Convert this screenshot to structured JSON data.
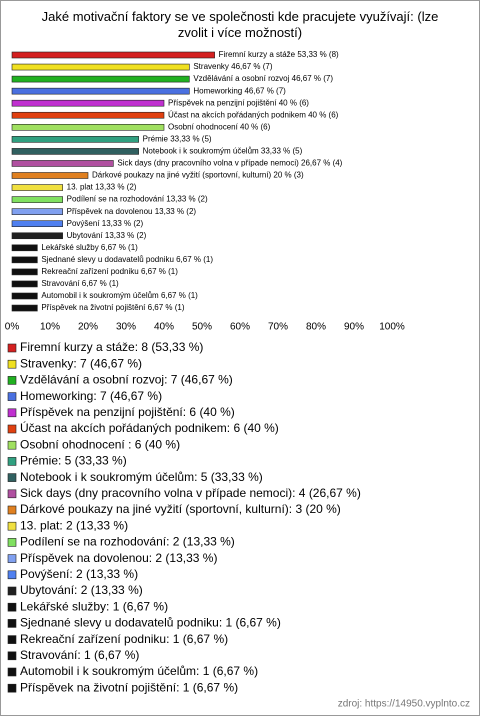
{
  "chart_data": {
    "type": "bar",
    "orientation": "horizontal",
    "title": "Jaké motivační faktory se ve společnosti kde pracujete využívají: (lze zvolit i více možností)",
    "categories": [
      "Firemní kurzy a stáže",
      "Stravenky",
      "Vzdělávání a osobní rozvoj",
      "Homeworking",
      "Příspěvek na penzijní pojištění",
      "Účast na akcích pořádaných podnikem",
      "Osobní ohodnocení",
      "Prémie",
      "Notebook i k soukromým účelům",
      "Sick days (dny pracovního volna v případe nemoci)",
      "Dárkové poukazy na jiné vyžití (sportovní, kulturní)",
      "13. plat",
      "Podílení se na rozhodování",
      "Příspěvek na dovolenou",
      "Povýšení",
      "Ubytování",
      "Lekářské služby",
      "Sjednané slevy u dodavatelů podniku",
      "Rekreační zařízení podniku",
      "Stravování",
      "Automobil i k soukromým účelům",
      "Příspěvek na životní pojištění"
    ],
    "values": [
      53.33,
      46.67,
      46.67,
      46.67,
      40,
      40,
      40,
      33.33,
      33.33,
      26.67,
      20,
      13.33,
      13.33,
      13.33,
      13.33,
      13.33,
      6.67,
      6.67,
      6.67,
      6.67,
      6.67,
      6.67
    ],
    "value_labels": [
      "Firemní kurzy a stáže 53,33 % (8)",
      "Stravenky 46,67 % (7)",
      "Vzdělávání a osobní rozvoj 46,67 % (7)",
      "Homeworking 46,67 % (7)",
      "Příspěvek na penzijní pojištění 40 % (6)",
      "Účast na akcích pořádaných podnikem 40 % (6)",
      "Osobní ohodnocení  40 % (6)",
      "Prémie 33,33 % (5)",
      "Notebook i k soukromým účelům 33,33 % (5)",
      "Sick days (dny pracovního volna v případe nemoci) 26,67 % (4)",
      "Dárkové poukazy na jiné vyžití (sportovní, kulturní) 20 % (3)",
      "13. plat 13,33 % (2)",
      "Podílení se na rozhodování 13,33 % (2)",
      "Příspěvek na dovolenou 13,33 % (2)",
      "Povýšení 13,33 % (2)",
      "Ubytování 13,33 % (2)",
      "Lekářské služby 6,67 % (1)",
      "Sjednané slevy u dodavatelů podniku 6,67 % (1)",
      "Rekreační zařízení podniku 6,67 % (1)",
      "Stravování 6,67 % (1)",
      "Automobil i k soukromým účelům 6,67 % (1)",
      "Příspěvek na životní pojištění 6,67 % (1)"
    ],
    "legend_labels": [
      "Firemní kurzy a stáže: 8 (53,33 %)",
      "Stravenky: 7 (46,67 %)",
      "Vzdělávání a osobní rozvoj: 7 (46,67 %)",
      "Homeworking: 7 (46,67 %)",
      "Příspěvek na penzijní pojištění: 6 (40 %)",
      "Účast na akcích pořádaných podnikem: 6 (40 %)",
      "Osobní ohodnocení : 6 (40 %)",
      "Prémie: 5 (33,33 %)",
      "Notebook i k soukromým účelům: 5 (33,33 %)",
      "Sick days (dny pracovního volna v případe nemoci): 4 (26,67 %)",
      "Dárkové poukazy na jiné vyžití (sportovní, kulturní): 3 (20 %)",
      "13. plat: 2 (13,33 %)",
      "Podílení se na rozhodování: 2 (13,33 %)",
      "Příspěvek na dovolenou: 2 (13,33 %)",
      "Povýšení: 2 (13,33 %)",
      "Ubytování: 2 (13,33 %)",
      "Lekářské služby: 1 (6,67 %)",
      "Sjednané slevy u dodavatelů podniku: 1 (6,67 %)",
      "Rekreační zařízení podniku: 1 (6,67 %)",
      "Stravování: 1 (6,67 %)",
      "Automobil i k soukromým účelům: 1 (6,67 %)",
      "Příspěvek na životní pojištění: 1 (6,67 %)"
    ],
    "colors": [
      "#d42020",
      "#f0e020",
      "#20b020",
      "#4a70e0",
      "#c030d0",
      "#e04010",
      "#a0e060",
      "#30a080",
      "#306060",
      "#b050a0",
      "#e08020",
      "#f0e040",
      "#80e060",
      "#80a0f0",
      "#5080f0",
      "#202020",
      "#101010",
      "#101010",
      "#101010",
      "#101010",
      "#101010",
      "#101010"
    ],
    "xlim": [
      0,
      100
    ],
    "xticks": [
      {
        "value": 0,
        "label": "0%"
      },
      {
        "value": 10,
        "label": "10%"
      },
      {
        "value": 20,
        "label": "20%"
      },
      {
        "value": 30,
        "label": "30%"
      },
      {
        "value": 40,
        "label": "40%"
      },
      {
        "value": 50,
        "label": "50%"
      },
      {
        "value": 60,
        "label": "60%"
      },
      {
        "value": 70,
        "label": "70%"
      },
      {
        "value": 80,
        "label": "80%"
      },
      {
        "value": 90,
        "label": "90%"
      },
      {
        "value": 100,
        "label": "100%"
      }
    ],
    "source": "zdroj: https://14950.vyplnto.cz"
  }
}
